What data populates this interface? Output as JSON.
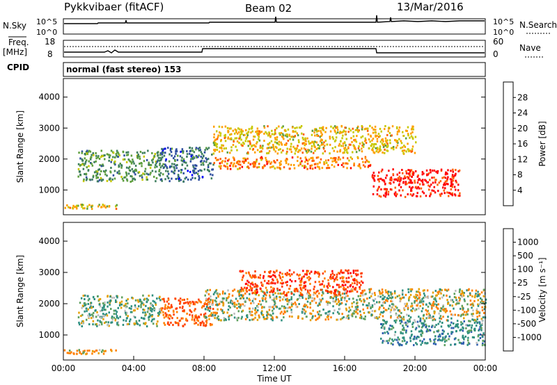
{
  "header": {
    "radar": "Pykkvibaer (fitACF)",
    "beam": "Beam 02",
    "date": "13/Mar/2016"
  },
  "noise_panel": {
    "left_label": "N.Sky",
    "right_label": "N.Search",
    "left_ticks": [
      "10^5",
      "10^0"
    ],
    "right_ticks": [
      "10^5",
      "10^0"
    ]
  },
  "freq_panel": {
    "label_line1": "Freq.",
    "label_line2": "[MHz]",
    "left_ticks": [
      "18",
      "8"
    ],
    "right_ticks": [
      "60",
      "0"
    ],
    "right_label": "Nave"
  },
  "cpid": {
    "label": "CPID",
    "value": "normal (fast stereo) 153"
  },
  "colors": {
    "power": [
      "#0000ff",
      "#2f4f9f",
      "#3f7f5f",
      "#5f9f3f",
      "#c8c800",
      "#ff9f00",
      "#ff5f00",
      "#ff0000"
    ],
    "velocity": [
      "#0000cf",
      "#2f5faf",
      "#2f8f7f",
      "#5fa05f",
      "#bebebe",
      "#bebebe",
      "#e6a000",
      "#ff7f00",
      "#ff4000",
      "#ff0000"
    ]
  },
  "chart_data": [
    {
      "type": "heatmap",
      "title": "",
      "ylabel": "Slant Range [km]",
      "xlabel": "",
      "ylim": [
        200,
        4600
      ],
      "yticks": [
        "1000",
        "2000",
        "3000",
        "4000"
      ],
      "x_range_hours": [
        0,
        24
      ],
      "colorbar": {
        "label": "Power [dB]",
        "ticks": [
          "4",
          "8",
          "12",
          "16",
          "20",
          "24",
          "28"
        ],
        "range": [
          0,
          32
        ]
      },
      "features": [
        {
          "region": "early echoes",
          "start_h": 0.8,
          "end_h": 5.5,
          "range_km": [
            1300,
            2300
          ],
          "value_db": 12
        },
        {
          "region": "near-range band",
          "start_h": 0.0,
          "end_h": 3.0,
          "range_km": [
            420,
            560
          ],
          "value_db": 20
        },
        {
          "region": "rising trace",
          "start_h": 5.5,
          "end_h": 8.5,
          "range_km": [
            1300,
            2400
          ],
          "value_db": 8
        },
        {
          "region": "main band",
          "start_h": 8.5,
          "end_h": 17.5,
          "range_km": [
            1700,
            2100
          ],
          "value_db": 24
        },
        {
          "region": "upper band",
          "start_h": 8.5,
          "end_h": 20.0,
          "range_km": [
            2200,
            3100
          ],
          "value_db": 20
        },
        {
          "region": "evening strong",
          "start_h": 17.5,
          "end_h": 22.5,
          "range_km": [
            800,
            1700
          ],
          "value_db": 30
        }
      ]
    },
    {
      "type": "heatmap",
      "title": "",
      "ylabel": "Slant Range [km]",
      "xlabel": "Time UT",
      "ylim": [
        200,
        4600
      ],
      "yticks": [
        "1000",
        "2000",
        "3000",
        "4000"
      ],
      "xticks": [
        "00:00",
        "04:00",
        "08:00",
        "12:00",
        "16:00",
        "20:00",
        "00:00"
      ],
      "x_range_hours": [
        0,
        24
      ],
      "colorbar": {
        "label": "Velocity [m s⁻¹]",
        "ticks": [
          "1000",
          "500",
          "100",
          "25",
          "-25",
          "-100",
          "-500",
          "-1000"
        ],
        "range": [
          -1000,
          1000
        ]
      },
      "features": [
        {
          "region": "early echoes",
          "start_h": 0.8,
          "end_h": 5.5,
          "range_km": [
            1300,
            2300
          ],
          "value_ms": 100
        },
        {
          "region": "near-range band",
          "start_h": 0.0,
          "end_h": 3.0,
          "range_km": [
            420,
            560
          ],
          "value_ms": -100
        },
        {
          "region": "rising trace",
          "start_h": 5.5,
          "end_h": 8.5,
          "range_km": [
            1300,
            2200
          ],
          "value_ms": -300
        },
        {
          "region": "ground scatter band",
          "start_h": 8.0,
          "end_h": 24.0,
          "range_km": [
            1500,
            2500
          ],
          "value_ms": 0
        },
        {
          "region": "upper negative",
          "start_h": 10.0,
          "end_h": 17.0,
          "range_km": [
            2300,
            3100
          ],
          "value_ms": -400
        },
        {
          "region": "late positive",
          "start_h": 18.0,
          "end_h": 24.0,
          "range_km": [
            700,
            1500
          ],
          "value_ms": 200
        }
      ]
    }
  ]
}
